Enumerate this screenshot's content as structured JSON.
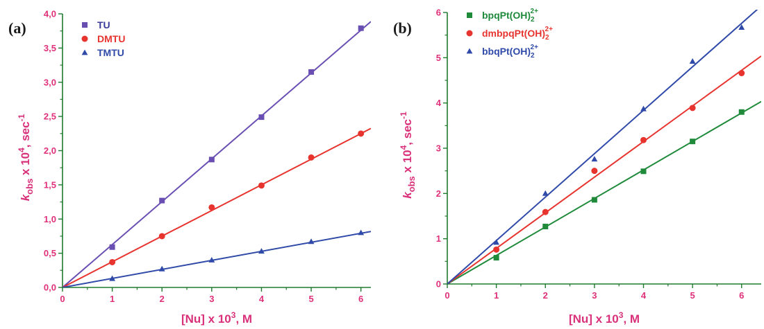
{
  "colors": {
    "axis": "#1f7a2e",
    "tick_label": "#e0307a",
    "axis_title": "#d9307a"
  },
  "chart_data": [
    {
      "panel_label": "(a)",
      "type": "scatter",
      "xlim": [
        0,
        6.2
      ],
      "ylim": [
        0,
        4.0
      ],
      "x_ticks": [
        0,
        1,
        2,
        3,
        4,
        5,
        6
      ],
      "y_ticks": [
        0,
        0.5,
        1.0,
        1.5,
        2.0,
        2.5,
        3.0,
        3.5,
        4.0
      ],
      "x_tick_labels": [
        "0",
        "1",
        "2",
        "3",
        "4",
        "5",
        "6"
      ],
      "y_tick_labels": [
        "0,0",
        "0,5",
        "1,0",
        "1,5",
        "2,0",
        "2,5",
        "3,0",
        "3,5",
        "4,0"
      ],
      "xlabel": {
        "prefix": "[Nu] x 10",
        "sup": "3",
        "suffix": ", M"
      },
      "ylabel": {
        "k": "k",
        "sub": "obs",
        "mid": " x 10",
        "sup": "4",
        "mid2": ", sec",
        "sup2": "-1"
      },
      "legend_position": "top-left",
      "series": [
        {
          "name": "TU",
          "name_sub": "",
          "name_sup": "",
          "marker": "square",
          "color": "#6a4fb3",
          "legend_color": "#3a3a9a",
          "x": [
            0,
            1,
            2,
            3,
            4,
            5,
            6
          ],
          "y": [
            0,
            0.59,
            1.27,
            1.87,
            2.49,
            3.15,
            3.79
          ],
          "fit_slope": 0.627
        },
        {
          "name": "DMTU",
          "name_sub": "",
          "name_sup": "",
          "marker": "circle",
          "color": "#e8342f",
          "legend_color": "#e8342f",
          "x": [
            0,
            1,
            2,
            3,
            4,
            5,
            6
          ],
          "y": [
            0,
            0.37,
            0.75,
            1.17,
            1.49,
            1.9,
            2.25
          ],
          "fit_slope": 0.375
        },
        {
          "name": "TMTU",
          "name_sub": "",
          "name_sup": "",
          "marker": "triangle",
          "color": "#2f4aa8",
          "legend_color": "#2f4aa8",
          "x": [
            0,
            1,
            2,
            3,
            4,
            5,
            6
          ],
          "y": [
            0,
            0.13,
            0.27,
            0.4,
            0.53,
            0.67,
            0.8
          ],
          "fit_slope": 0.132
        }
      ]
    },
    {
      "panel_label": "(b)",
      "type": "scatter",
      "xlim": [
        0,
        6.4
      ],
      "ylim": [
        0,
        6
      ],
      "x_ticks": [
        0,
        1,
        2,
        3,
        4,
        5,
        6
      ],
      "y_ticks": [
        0,
        1,
        2,
        3,
        4,
        5,
        6
      ],
      "x_tick_labels": [
        "0",
        "1",
        "2",
        "3",
        "4",
        "5",
        "6"
      ],
      "y_tick_labels": [
        "0",
        "1",
        "2",
        "3",
        "4",
        "5",
        "6"
      ],
      "xlabel": {
        "prefix": "[Nu] x 10",
        "sup": "3",
        "suffix": ", M"
      },
      "ylabel": {
        "k": "k",
        "sub": "obs",
        "mid": " x 10",
        "sup": "4",
        "mid2": ", sec",
        "sup2": "-1"
      },
      "legend_position": "top-left",
      "series": [
        {
          "name": "bpqPt(OH)",
          "name_sub": "2",
          "name_sup": "2+",
          "marker": "square",
          "color": "#1e8a3a",
          "legend_color": "#1e8a3a",
          "x": [
            0,
            1,
            2,
            3,
            4,
            5,
            6
          ],
          "y": [
            0,
            0.58,
            1.27,
            1.86,
            2.49,
            3.15,
            3.8
          ],
          "fit_slope": 0.63
        },
        {
          "name": "dmbpqPt(OH)",
          "name_sub": "2",
          "name_sup": "2+",
          "marker": "circle",
          "color": "#e8342f",
          "legend_color": "#e8342f",
          "x": [
            0,
            1,
            2,
            3,
            4,
            5,
            6
          ],
          "y": [
            0,
            0.76,
            1.59,
            2.5,
            3.18,
            3.89,
            4.66
          ],
          "fit_slope": 0.787
        },
        {
          "name": "bbqPt(OH)",
          "name_sub": "2",
          "name_sup": "2+",
          "marker": "triangle",
          "color": "#2f4aa8",
          "legend_color": "#2f4aa8",
          "x": [
            0,
            1,
            2,
            3,
            4,
            5,
            6
          ],
          "y": [
            0,
            0.92,
            2.0,
            2.76,
            3.87,
            4.92,
            5.67
          ],
          "fit_slope": 0.96
        }
      ]
    }
  ]
}
